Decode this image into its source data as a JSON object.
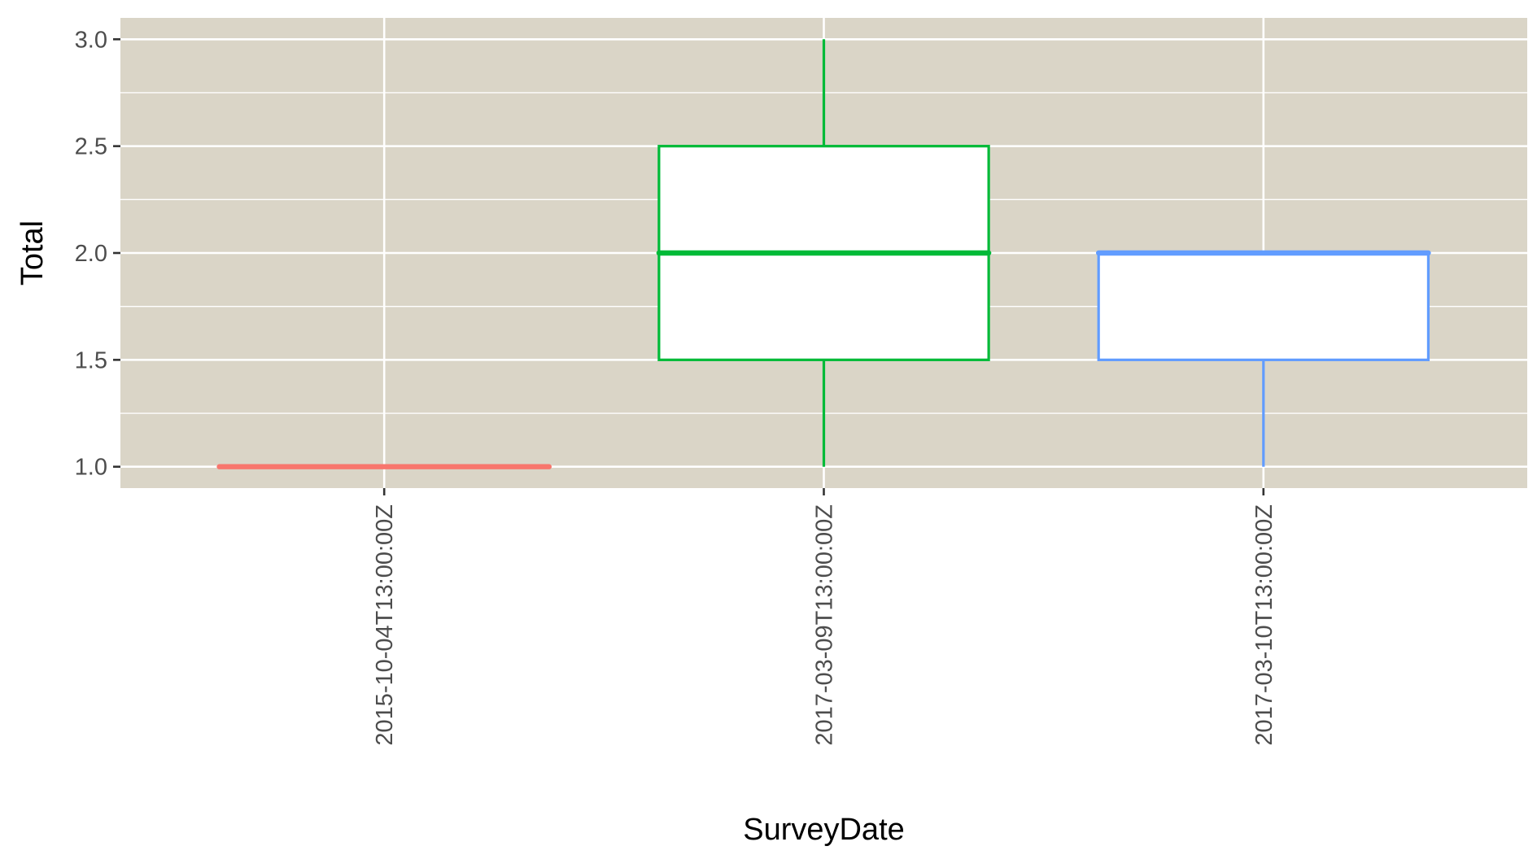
{
  "chart_data": {
    "type": "boxplot",
    "title": "",
    "xlabel": "SurveyDate",
    "ylabel": "Total",
    "categories": [
      "2015-10-04T13:00:00Z",
      "2017-03-09T13:00:00Z",
      "2017-03-10T13:00:00Z"
    ],
    "boxes": [
      {
        "category": "2015-10-04T13:00:00Z",
        "min": 1.0,
        "q1": 1.0,
        "median": 1.0,
        "q3": 1.0,
        "max": 1.0,
        "color": "#F8766D"
      },
      {
        "category": "2017-03-09T13:00:00Z",
        "min": 1.0,
        "q1": 1.5,
        "median": 2.0,
        "q3": 2.5,
        "max": 3.0,
        "color": "#00BA38"
      },
      {
        "category": "2017-03-10T13:00:00Z",
        "min": 1.0,
        "q1": 1.5,
        "median": 2.0,
        "q3": 2.0,
        "max": 2.0,
        "color": "#619CFF"
      }
    ],
    "y_ticks": [
      "1.0",
      "1.5",
      "2.0",
      "2.5",
      "3.0"
    ],
    "ylim": [
      0.9,
      3.1
    ],
    "grid": true,
    "legend": "none",
    "panel_color": "#DAD5C7"
  }
}
